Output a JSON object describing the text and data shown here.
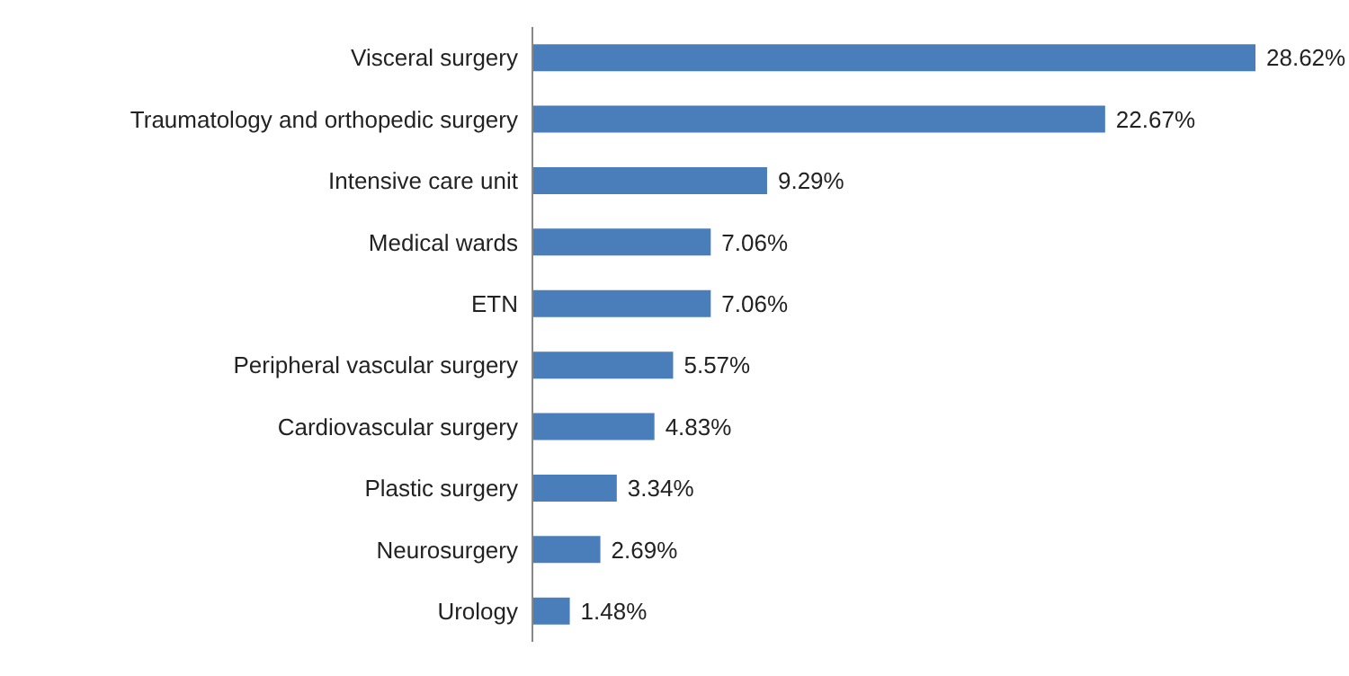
{
  "chart_data": {
    "type": "bar",
    "orientation": "horizontal",
    "categories": [
      "Visceral surgery",
      "Traumatology and orthopedic surgery",
      "Intensive care unit",
      "Medical wards",
      "ETN",
      "Peripheral vascular surgery",
      "Cardiovascular surgery",
      "Plastic surgery",
      "Neurosurgery",
      "Urology"
    ],
    "values": [
      28.62,
      22.67,
      9.29,
      7.06,
      7.06,
      5.57,
      4.83,
      3.34,
      2.69,
      1.48
    ],
    "value_labels": [
      "28.62%",
      "22.67%",
      "9.29%",
      "7.06%",
      "7.06%",
      "5.57%",
      "4.83%",
      "3.34%",
      "2.69%",
      "1.48%"
    ],
    "color": "#4a7ebb"
  }
}
